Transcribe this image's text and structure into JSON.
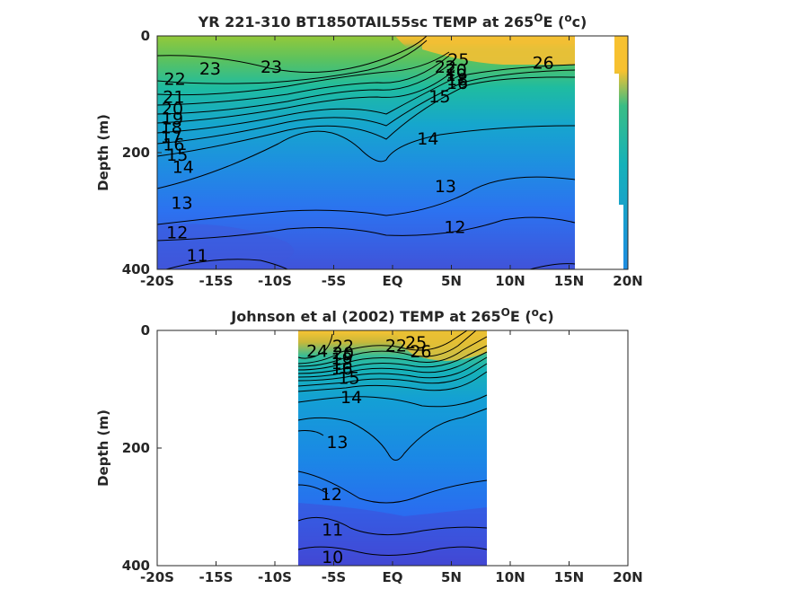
{
  "chart_data": [
    {
      "type": "heatmap",
      "title_pre": "YR 221-310 BT1850TAIL55sc TEMP at 265",
      "title_sup1": "O",
      "title_mid": "E (",
      "title_sup2": "o",
      "title_post": "c)",
      "ylabel": "Depth (m)",
      "x_ticks": [
        "-20S",
        "-15S",
        "-10S",
        "-5S",
        "EQ",
        "5N",
        "10N",
        "15N",
        "20N"
      ],
      "x_tick_values": [
        -20,
        -15,
        -10,
        -5,
        0,
        5,
        10,
        15,
        20
      ],
      "y_ticks": [
        "0",
        "200",
        "400"
      ],
      "y_tick_values": [
        0,
        200,
        400
      ],
      "xlim": [
        -20,
        20
      ],
      "ylim": [
        400,
        0
      ],
      "data_extent_lat": [
        -20,
        15
      ],
      "colorscale": "parula",
      "clim": [
        10,
        27
      ],
      "contour_interval": 1,
      "contour_labels": [
        {
          "text": "23",
          "lat": -15.5,
          "depth": 55
        },
        {
          "text": "22",
          "lat": -18.5,
          "depth": 73
        },
        {
          "text": "21",
          "lat": -18.6,
          "depth": 104
        },
        {
          "text": "20",
          "lat": -18.7,
          "depth": 124
        },
        {
          "text": "19",
          "lat": -18.7,
          "depth": 141
        },
        {
          "text": "18",
          "lat": -18.8,
          "depth": 156
        },
        {
          "text": "17",
          "lat": -18.8,
          "depth": 172
        },
        {
          "text": "16",
          "lat": -18.6,
          "depth": 185
        },
        {
          "text": "15",
          "lat": -18.3,
          "depth": 203
        },
        {
          "text": "14",
          "lat": -17.8,
          "depth": 224
        },
        {
          "text": "13",
          "lat": -17.9,
          "depth": 285
        },
        {
          "text": "12",
          "lat": -18.3,
          "depth": 336
        },
        {
          "text": "11",
          "lat": -16.6,
          "depth": 375
        },
        {
          "text": "23",
          "lat": -10.3,
          "depth": 52
        },
        {
          "text": "25",
          "lat": 5.6,
          "depth": 40
        },
        {
          "text": "26",
          "lat": 12.8,
          "depth": 45
        },
        {
          "text": "22",
          "lat": 4.5,
          "depth": 52
        },
        {
          "text": "20",
          "lat": 5.4,
          "depth": 58
        },
        {
          "text": "19",
          "lat": 5.4,
          "depth": 66
        },
        {
          "text": "18",
          "lat": 5.5,
          "depth": 74
        },
        {
          "text": "16",
          "lat": 5.5,
          "depth": 80
        },
        {
          "text": "15",
          "lat": 4.0,
          "depth": 103
        },
        {
          "text": "14",
          "lat": 3.0,
          "depth": 175
        },
        {
          "text": "13",
          "lat": 4.5,
          "depth": 257
        },
        {
          "text": "12",
          "lat": 5.3,
          "depth": 327
        }
      ]
    },
    {
      "type": "heatmap",
      "title_pre": "Johnson et al (2002) TEMP at 265",
      "title_sup1": "O",
      "title_mid": "E (",
      "title_sup2": "o",
      "title_post": "c)",
      "ylabel": "Depth (m)",
      "x_ticks": [
        "-20S",
        "-15S",
        "-10S",
        "-5S",
        "EQ",
        "5N",
        "10N",
        "15N",
        "20N"
      ],
      "x_tick_values": [
        -20,
        -15,
        -10,
        -5,
        0,
        5,
        10,
        15,
        20
      ],
      "y_ticks": [
        "0",
        "200",
        "400"
      ],
      "y_tick_values": [
        0,
        200,
        400
      ],
      "xlim": [
        -20,
        20
      ],
      "ylim": [
        400,
        0
      ],
      "data_extent_lat": [
        -8,
        8
      ],
      "colorscale": "parula",
      "clim": [
        10,
        27
      ],
      "contour_interval": 1,
      "contour_labels": [
        {
          "text": "24",
          "lat": -6.4,
          "depth": 34
        },
        {
          "text": "22",
          "lat": -4.2,
          "depth": 26
        },
        {
          "text": "20",
          "lat": -4.2,
          "depth": 38
        },
        {
          "text": "19",
          "lat": -4.3,
          "depth": 47
        },
        {
          "text": "18",
          "lat": -4.3,
          "depth": 55
        },
        {
          "text": "16",
          "lat": -4.3,
          "depth": 64
        },
        {
          "text": "15",
          "lat": -3.7,
          "depth": 80
        },
        {
          "text": "14",
          "lat": -3.5,
          "depth": 113
        },
        {
          "text": "22",
          "lat": 0.3,
          "depth": 25
        },
        {
          "text": "25",
          "lat": 2.0,
          "depth": 20
        },
        {
          "text": "26",
          "lat": 2.4,
          "depth": 35
        },
        {
          "text": "13",
          "lat": -4.7,
          "depth": 189
        },
        {
          "text": "12",
          "lat": -5.2,
          "depth": 278
        },
        {
          "text": "11",
          "lat": -5.1,
          "depth": 338
        },
        {
          "text": "10",
          "lat": -5.1,
          "depth": 385
        }
      ]
    }
  ]
}
